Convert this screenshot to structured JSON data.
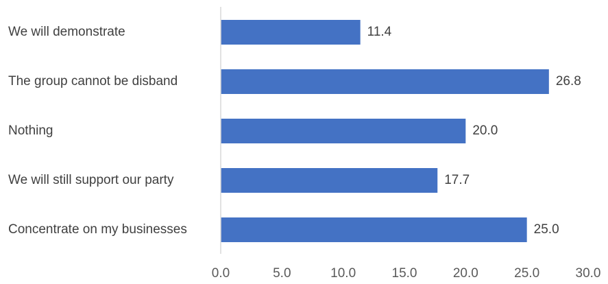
{
  "chart_data": {
    "type": "bar",
    "orientation": "horizontal",
    "categories": [
      "We will demonstrate",
      "The group cannot be disband",
      "Nothing",
      "We will still support our party",
      "Concentrate on my businesses"
    ],
    "values": [
      11.4,
      26.8,
      20.0,
      17.7,
      25.0
    ],
    "value_labels": [
      "11.4",
      "26.8",
      "20.0",
      "17.7",
      "25.0"
    ],
    "xlim": [
      0,
      30
    ],
    "x_ticks": [
      "0.0",
      "5.0",
      "10.0",
      "15.0",
      "20.0",
      "25.0",
      "30.0"
    ],
    "grid": false,
    "legend": "none",
    "bar_color": "#4472C4",
    "axis_color": "#D9D9D9",
    "text_color": "#404040"
  }
}
